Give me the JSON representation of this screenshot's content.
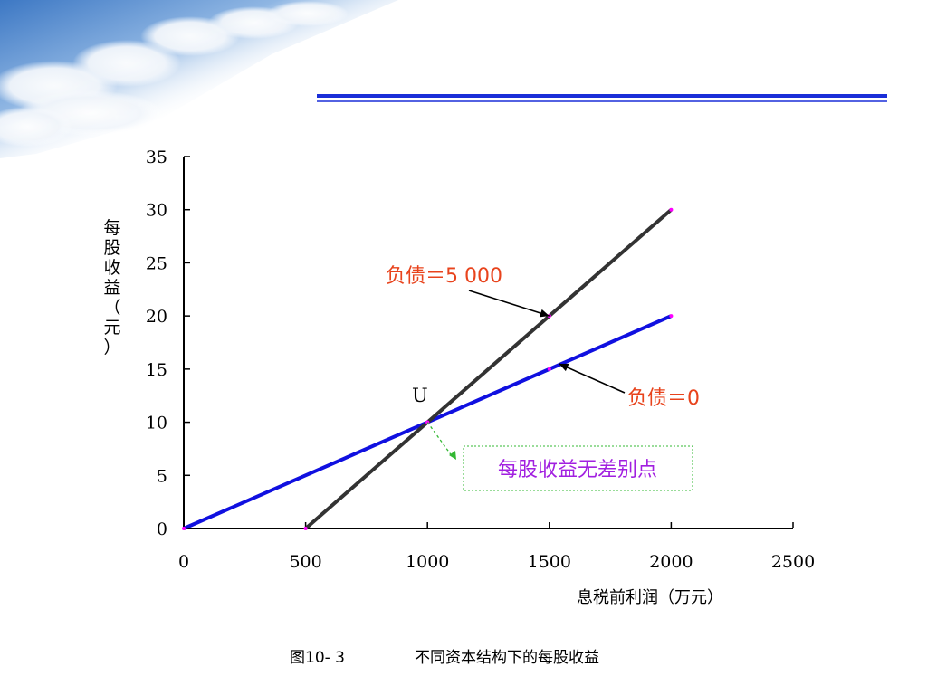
{
  "colors": {
    "axis": "#000000",
    "series_debt_0": "#1010e0",
    "series_debt_5000": "#333333",
    "annotation_text": "#e8431c",
    "box_text": "#a11fe0",
    "box_border": "#33b833",
    "marker": "#ff00ff",
    "header_line": "#1a2ed8"
  },
  "chart_data": {
    "type": "line",
    "xlabel": "息税前利润（万元）",
    "ylabel": "每股收益（元）",
    "xlim": [
      0,
      2500
    ],
    "ylim": [
      0,
      35
    ],
    "x_ticks": [
      "0",
      "500",
      "1000",
      "1500",
      "2000",
      "2500"
    ],
    "y_ticks": [
      "0",
      "5",
      "10",
      "15",
      "20",
      "25",
      "30",
      "35"
    ],
    "grid": false,
    "series": [
      {
        "name": "负债＝0",
        "points": [
          [
            0,
            0
          ],
          [
            1000,
            10
          ],
          [
            1500,
            15
          ],
          [
            2000,
            20
          ]
        ]
      },
      {
        "name": "负债＝5 000",
        "points": [
          [
            500,
            0
          ],
          [
            1000,
            10
          ],
          [
            1500,
            20
          ],
          [
            2000,
            30
          ]
        ]
      }
    ],
    "annotations": {
      "debt_5000_label": "负债＝5 000",
      "debt_0_label": "负债＝0",
      "point_label": "U",
      "indifference_label": "每股收益无差别点"
    },
    "indifference_point": [
      1000,
      10
    ]
  },
  "caption": {
    "figure_no": "图10- 3",
    "title": "不同资本结构下的每股收益"
  }
}
